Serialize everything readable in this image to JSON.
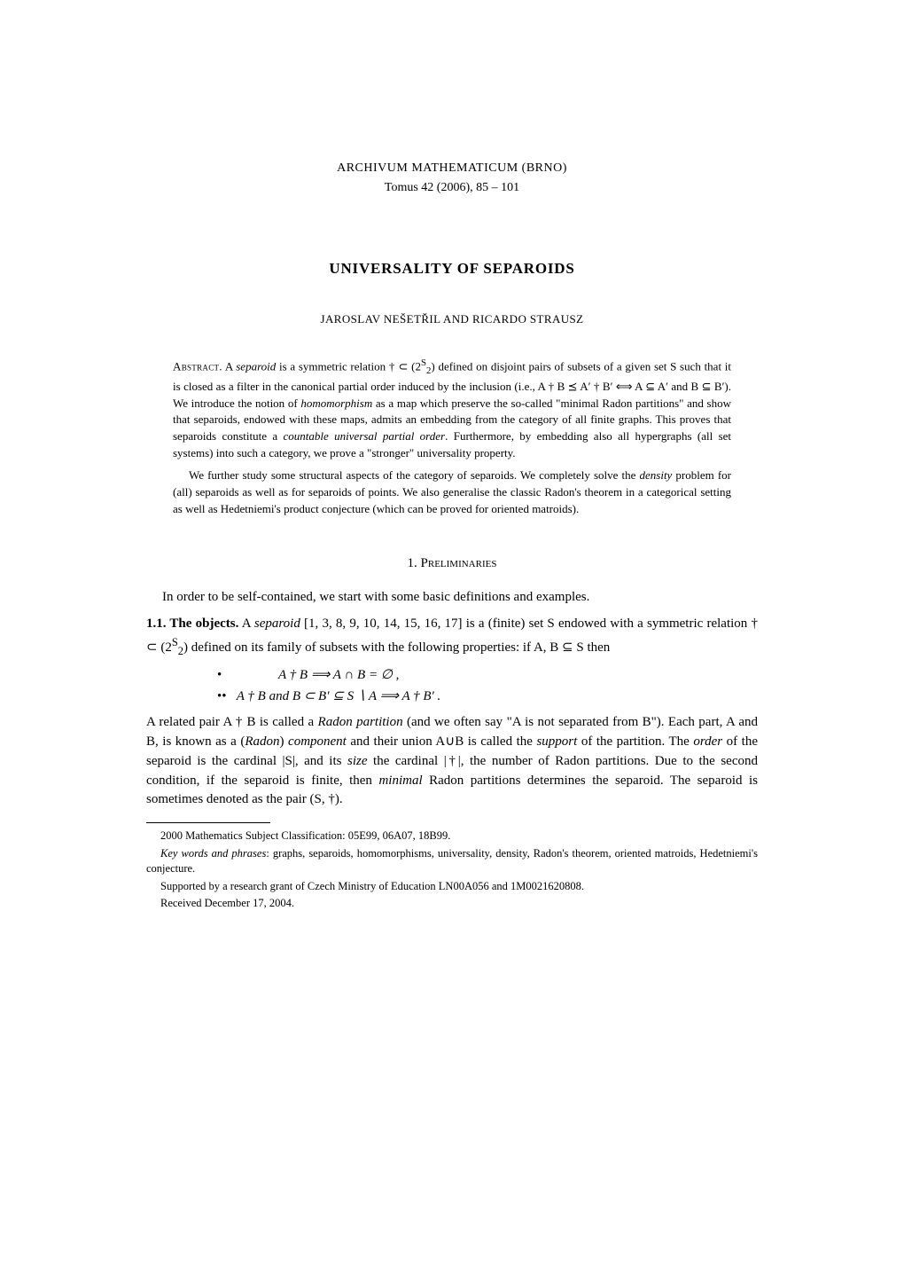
{
  "journal": {
    "name": "ARCHIVUM MATHEMATICUM (BRNO)",
    "issue": "Tomus 42 (2006), 85 – 101"
  },
  "title": "UNIVERSALITY OF SEPAROIDS",
  "authors": "JAROSLAV NEŠETŘIL AND RICARDO STRAUSZ",
  "abstract": {
    "label": "Abstract.",
    "para1_a": "A ",
    "para1_sep": "separoid",
    "para1_b": " is a symmetric relation † ⊂ (",
    "para1_binom_top": "2",
    "para1_binom_sup": "S",
    "para1_binom_bot": "2",
    "para1_c": ") defined on disjoint pairs of subsets of a given set S such that it is closed as a filter in the canonical partial order induced by the inclusion (i.e., A † B ⪯ A′ † B′ ⟺ A ⊆ A′ and B ⊆ B′). We introduce the notion of ",
    "para1_homo": "homomorphism",
    "para1_d": " as a map which preserve the so-called \"minimal Radon partitions\" and show that separoids, endowed with these maps, admits an embedding from the category of all finite graphs. This proves that separoids constitute a ",
    "para1_cupo": "countable universal partial order",
    "para1_e": ". Furthermore, by embedding also all hypergraphs (all set systems) into such a category, we prove a \"stronger\" universality property.",
    "para2_a": "We further study some structural aspects of the category of separoids. We completely solve the ",
    "para2_density": "density",
    "para2_b": " problem for (all) separoids as well as for separoids of points. We also generalise the classic Radon's theorem in a categorical setting as well as Hedetniemi's product conjecture (which can be proved for oriented matroids)."
  },
  "section1": {
    "heading": "1. Preliminaries",
    "intro": "In order to be self-contained, we start with some basic definitions and examples."
  },
  "subsection11": {
    "label": "1.1. The objects.",
    "text_a": " A ",
    "separoid": "separoid",
    "text_b": " [1, 3, 8, 9, 10, 14, 15, 16, 17] is a (finite) set S endowed with a symmetric relation † ⊂ (",
    "binom_top": "2",
    "binom_sup": "S",
    "binom_bot": "2",
    "text_c": ") defined on its family of subsets with the following properties: if A, B ⊆ S then",
    "bullet1": "•",
    "eq1": "A † B  ⟹  A ∩ B = ∅ ,",
    "bullet2": "••",
    "eq2": "A † B   and   B ⊂ B′ ⊆ S ∖ A  ⟹  A † B′ .",
    "text_d": "A related pair A † B is called a ",
    "radon_part": "Radon partition",
    "text_e": " (and we often say \"A is not separated from B\"). Each part, A and B, is known as a (",
    "radon": "Radon",
    "text_f": ") ",
    "component": "component",
    "text_g": " and their union A∪B is called the ",
    "support": "support",
    "text_h": " of the partition. The ",
    "order": "order",
    "text_i": " of the separoid is the cardinal |S|, and its ",
    "size": "size",
    "text_j": " the cardinal |†|, the number of Radon partitions. Due to the second condition, if the separoid is finite, then ",
    "minimal": "minimal",
    "text_k": " Radon partitions determines the separoid. The separoid is sometimes denoted as the pair (S, †)."
  },
  "footnotes": {
    "msc_label": "2000 Mathematics Subject Classification",
    "msc_value": ": 05E99, 06A07, 18B99.",
    "kwp_label": "Key words and phrases",
    "kwp_value": ": graphs, separoids, homomorphisms, universality, density, Radon's theorem, oriented matroids, Hedetniemi's conjecture.",
    "support": "Supported by a research grant of Czech Ministry of Education LN00A056 and 1M0021620808.",
    "received": "Received December 17, 2004."
  }
}
